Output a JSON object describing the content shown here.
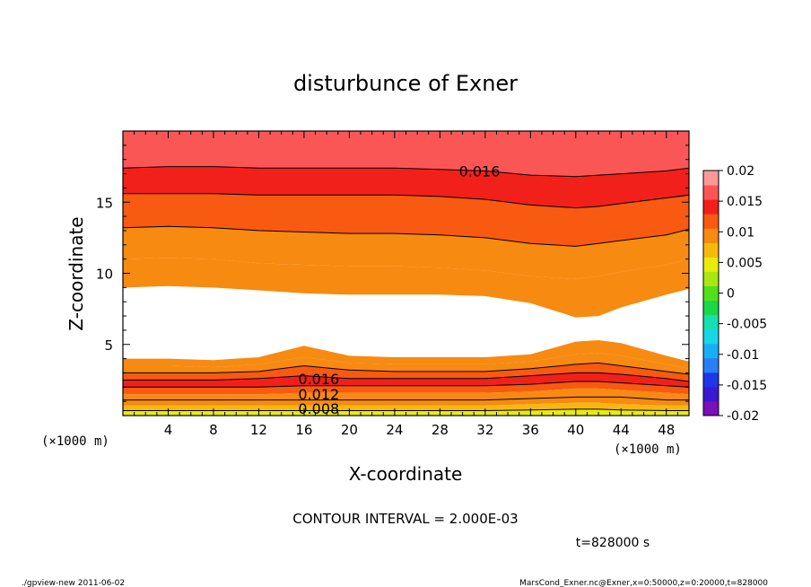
{
  "chart_data": {
    "type": "contour",
    "title": "disturbunce of Exner",
    "xlabel": "X-coordinate",
    "ylabel": "Z-coordinate",
    "x_unit": "(×1000 m)",
    "z_unit": "(×1000 m)",
    "xlim": [
      0,
      50
    ],
    "ylim": [
      0,
      20
    ],
    "x_ticks": [
      4,
      8,
      12,
      16,
      20,
      24,
      28,
      32,
      36,
      40,
      44,
      48
    ],
    "y_ticks": [
      5,
      10,
      15
    ],
    "contour_interval_label": "CONTOUR INTERVAL = 2.000E-03",
    "time_label": "t=828000 s",
    "contour_labels": [
      {
        "text": "0.016",
        "x": 31.5,
        "z": 17.2
      },
      {
        "text": "0.016",
        "x": 17.3,
        "z": 2.6
      },
      {
        "text": "0.012",
        "x": 17.3,
        "z": 1.5
      },
      {
        "text": "0.008",
        "x": 17.3,
        "z": 0.5
      }
    ],
    "colorbar": {
      "ticks": [
        "0.02",
        "0.015",
        "0.01",
        "0.005",
        "0",
        "-0.005",
        "-0.01",
        "-0.015",
        "-0.02"
      ],
      "range": [
        -0.02,
        0.02
      ],
      "levels": [
        -0.02,
        -0.0175,
        -0.015,
        -0.0125,
        -0.01,
        -0.0075,
        -0.005,
        -0.0025,
        0,
        0.0025,
        0.005,
        0.0075,
        0.01,
        0.0125,
        0.015,
        0.0175,
        0.02
      ],
      "colors": [
        "#7b0fb8",
        "#3a1ad0",
        "#1f35e8",
        "#2a7ef5",
        "#18aef5",
        "#18d6e8",
        "#16e0b0",
        "#1bd84a",
        "#52e01a",
        "#aae610",
        "#e8ea10",
        "#f7b80e",
        "#f78a10",
        "#f75a10",
        "#f2201a",
        "#fb5656",
        "#fc9898"
      ]
    },
    "upper_region": {
      "x": [
        0,
        4,
        8,
        12,
        16,
        20,
        24,
        28,
        32,
        36,
        40,
        42,
        44,
        48,
        50
      ],
      "bands": [
        {
          "level": 0.018,
          "top": [
            20,
            20,
            20,
            20,
            20,
            20,
            20,
            20,
            20,
            20,
            20,
            20,
            20,
            20,
            20
          ],
          "bottom": [
            17.4,
            17.5,
            17.5,
            17.4,
            17.4,
            17.4,
            17.4,
            17.3,
            17.2,
            16.9,
            16.8,
            16.9,
            17.0,
            17.2,
            17.4
          ]
        },
        {
          "level": 0.016,
          "top": [
            17.4,
            17.5,
            17.5,
            17.4,
            17.4,
            17.4,
            17.4,
            17.3,
            17.2,
            16.9,
            16.8,
            16.9,
            17.0,
            17.2,
            17.4
          ],
          "bottom": [
            15.6,
            15.6,
            15.6,
            15.5,
            15.5,
            15.5,
            15.5,
            15.4,
            15.2,
            14.8,
            14.6,
            14.7,
            14.9,
            15.3,
            15.5
          ]
        },
        {
          "level": 0.014,
          "top": [
            15.6,
            15.6,
            15.6,
            15.5,
            15.5,
            15.5,
            15.5,
            15.4,
            15.2,
            14.8,
            14.6,
            14.7,
            14.9,
            15.3,
            15.5
          ],
          "bottom": [
            13.2,
            13.3,
            13.2,
            13.0,
            12.9,
            12.8,
            12.8,
            12.7,
            12.5,
            12.1,
            11.9,
            12.1,
            12.3,
            12.7,
            13.1
          ]
        },
        {
          "level": 0.012,
          "top": [
            13.2,
            13.3,
            13.2,
            13.0,
            12.9,
            12.8,
            12.8,
            12.7,
            12.5,
            12.1,
            11.9,
            12.1,
            12.3,
            12.7,
            13.1
          ],
          "bottom": [
            11.0,
            11.1,
            11.0,
            10.7,
            10.6,
            10.5,
            10.5,
            10.4,
            10.2,
            9.8,
            9.6,
            9.8,
            10.1,
            10.6,
            11.0
          ]
        },
        {
          "level": 0.01,
          "top": [
            11.0,
            11.1,
            11.0,
            10.7,
            10.6,
            10.5,
            10.5,
            10.4,
            10.2,
            9.8,
            9.6,
            9.8,
            10.1,
            10.6,
            11.0
          ],
          "bottom": [
            9.0,
            9.1,
            9.0,
            8.8,
            8.6,
            8.5,
            8.5,
            8.5,
            8.4,
            7.9,
            6.9,
            7.0,
            7.6,
            8.5,
            8.9
          ]
        }
      ]
    },
    "lower_region": {
      "x": [
        0,
        4,
        8,
        12,
        16,
        20,
        24,
        28,
        32,
        36,
        40,
        42,
        44,
        48,
        50
      ],
      "bands": [
        {
          "level": 0.01,
          "top": [
            4.0,
            4.0,
            3.9,
            4.1,
            4.9,
            4.2,
            4.1,
            4.1,
            4.1,
            4.3,
            5.2,
            5.3,
            5.1,
            4.2,
            3.8
          ],
          "bottom": [
            3.5,
            3.5,
            3.4,
            3.6,
            4.1,
            3.7,
            3.6,
            3.6,
            3.6,
            3.8,
            4.3,
            4.4,
            4.2,
            3.6,
            3.3
          ]
        },
        {
          "level": 0.012,
          "top": [
            3.5,
            3.5,
            3.4,
            3.6,
            4.1,
            3.7,
            3.6,
            3.6,
            3.6,
            3.8,
            4.3,
            4.4,
            4.2,
            3.6,
            3.3
          ],
          "bottom": [
            3.0,
            3.0,
            3.0,
            3.1,
            3.5,
            3.2,
            3.1,
            3.1,
            3.1,
            3.3,
            3.6,
            3.7,
            3.5,
            3.1,
            2.9
          ]
        },
        {
          "level": 0.014,
          "top": [
            3.0,
            3.0,
            3.0,
            3.1,
            3.5,
            3.2,
            3.1,
            3.1,
            3.1,
            3.3,
            3.6,
            3.7,
            3.5,
            3.1,
            2.9
          ],
          "bottom": [
            2.5,
            2.5,
            2.5,
            2.6,
            2.8,
            2.6,
            2.6,
            2.6,
            2.6,
            2.8,
            3.0,
            3.0,
            2.9,
            2.6,
            2.4
          ]
        },
        {
          "level": 0.016,
          "top": [
            2.5,
            2.5,
            2.5,
            2.6,
            2.8,
            2.6,
            2.6,
            2.6,
            2.6,
            2.8,
            3.0,
            3.0,
            2.9,
            2.6,
            2.4
          ],
          "bottom": [
            2.0,
            2.0,
            2.0,
            2.0,
            2.1,
            2.1,
            2.1,
            2.1,
            2.1,
            2.2,
            2.4,
            2.4,
            2.3,
            2.1,
            2.0
          ]
        },
        {
          "level": 0.014,
          "top": [
            2.0,
            2.0,
            2.0,
            2.0,
            2.1,
            2.1,
            2.1,
            2.1,
            2.1,
            2.2,
            2.4,
            2.4,
            2.3,
            2.1,
            2.0
          ],
          "bottom": [
            1.5,
            1.5,
            1.5,
            1.5,
            1.6,
            1.6,
            1.6,
            1.6,
            1.6,
            1.7,
            1.9,
            1.9,
            1.8,
            1.6,
            1.5
          ]
        },
        {
          "level": 0.012,
          "top": [
            1.5,
            1.5,
            1.5,
            1.5,
            1.6,
            1.6,
            1.6,
            1.6,
            1.6,
            1.7,
            1.9,
            1.9,
            1.8,
            1.6,
            1.5
          ],
          "bottom": [
            1.1,
            1.1,
            1.1,
            1.1,
            1.1,
            1.1,
            1.1,
            1.1,
            1.1,
            1.2,
            1.3,
            1.3,
            1.3,
            1.1,
            1.1
          ]
        },
        {
          "level": 0.01,
          "top": [
            1.1,
            1.1,
            1.1,
            1.1,
            1.1,
            1.1,
            1.1,
            1.1,
            1.1,
            1.2,
            1.3,
            1.3,
            1.3,
            1.1,
            1.1
          ],
          "bottom": [
            0.7,
            0.7,
            0.7,
            0.7,
            0.7,
            0.7,
            0.7,
            0.7,
            0.7,
            0.8,
            0.9,
            0.9,
            0.8,
            0.7,
            0.7
          ]
        },
        {
          "level": 0.008,
          "top": [
            0.7,
            0.7,
            0.7,
            0.7,
            0.7,
            0.7,
            0.7,
            0.7,
            0.7,
            0.8,
            0.9,
            0.9,
            0.8,
            0.7,
            0.7
          ],
          "bottom": [
            0.35,
            0.35,
            0.35,
            0.35,
            0.35,
            0.35,
            0.35,
            0.35,
            0.35,
            0.4,
            0.45,
            0.45,
            0.4,
            0.35,
            0.35
          ]
        },
        {
          "level": 0.006,
          "top": [
            0.35,
            0.35,
            0.35,
            0.35,
            0.35,
            0.35,
            0.35,
            0.35,
            0.35,
            0.4,
            0.45,
            0.45,
            0.4,
            0.35,
            0.35
          ],
          "bottom": [
            0,
            0,
            0,
            0,
            0,
            0,
            0,
            0,
            0,
            0,
            0,
            0,
            0,
            0,
            0
          ]
        }
      ]
    },
    "contour_lines": [
      {
        "level": 0.016,
        "x": [
          0,
          4,
          8,
          12,
          16,
          20,
          24,
          28,
          32,
          36,
          40,
          42,
          44,
          48,
          50
        ],
        "z": [
          17.4,
          17.5,
          17.5,
          17.4,
          17.4,
          17.4,
          17.4,
          17.3,
          17.2,
          16.9,
          16.8,
          16.9,
          17.0,
          17.2,
          17.4
        ]
      },
      {
        "level": 0.014,
        "x": [
          0,
          4,
          8,
          12,
          16,
          20,
          24,
          28,
          32,
          36,
          40,
          42,
          44,
          48,
          50
        ],
        "z": [
          15.6,
          15.6,
          15.6,
          15.5,
          15.5,
          15.5,
          15.5,
          15.4,
          15.2,
          14.8,
          14.6,
          14.7,
          14.9,
          15.3,
          15.5
        ]
      },
      {
        "level": 0.012,
        "x": [
          0,
          4,
          8,
          12,
          16,
          20,
          24,
          28,
          32,
          36,
          40,
          42,
          44,
          48,
          50
        ],
        "z": [
          13.2,
          13.3,
          13.2,
          13.0,
          12.9,
          12.8,
          12.8,
          12.7,
          12.5,
          12.1,
          11.9,
          12.1,
          12.3,
          12.7,
          13.1
        ]
      },
      {
        "level": 0.012,
        "x": [
          0,
          4,
          8,
          12,
          16,
          20,
          24,
          28,
          32,
          36,
          40,
          42,
          44,
          48,
          50
        ],
        "z": [
          3.0,
          3.0,
          3.0,
          3.1,
          3.5,
          3.2,
          3.1,
          3.1,
          3.1,
          3.3,
          3.6,
          3.7,
          3.5,
          3.1,
          2.9
        ]
      },
      {
        "level": 0.016,
        "x": [
          0,
          4,
          8,
          12,
          16,
          20,
          24,
          28,
          32,
          36,
          40,
          42,
          44,
          48,
          50
        ],
        "z": [
          2.5,
          2.5,
          2.5,
          2.6,
          2.8,
          2.6,
          2.6,
          2.6,
          2.6,
          2.8,
          3.0,
          3.0,
          2.9,
          2.6,
          2.4
        ]
      },
      {
        "level": 0.016,
        "x": [
          0,
          4,
          8,
          12,
          16,
          20,
          24,
          28,
          32,
          36,
          40,
          42,
          44,
          48,
          50
        ],
        "z": [
          2.0,
          2.0,
          2.0,
          2.0,
          2.1,
          2.1,
          2.1,
          2.1,
          2.1,
          2.2,
          2.4,
          2.4,
          2.3,
          2.1,
          2.0
        ]
      },
      {
        "level": 0.012,
        "x": [
          0,
          4,
          8,
          12,
          16,
          20,
          24,
          28,
          32,
          36,
          40,
          42,
          44,
          48,
          50
        ],
        "z": [
          1.1,
          1.1,
          1.1,
          1.1,
          1.1,
          1.1,
          1.1,
          1.1,
          1.1,
          1.2,
          1.3,
          1.3,
          1.3,
          1.1,
          1.1
        ]
      },
      {
        "level": 0.008,
        "x": [
          0,
          4,
          8,
          12,
          16,
          20,
          24,
          28,
          32,
          36,
          40,
          42,
          44,
          48,
          50
        ],
        "z": [
          0.35,
          0.35,
          0.35,
          0.35,
          0.35,
          0.35,
          0.35,
          0.35,
          0.35,
          0.4,
          0.45,
          0.45,
          0.4,
          0.35,
          0.35
        ]
      }
    ]
  },
  "footer": {
    "left": "./gpview-new   2011-06-02",
    "right": "MarsCond_Exner.nc@Exner,x=0:50000,z=0:20000,t=828000"
  }
}
